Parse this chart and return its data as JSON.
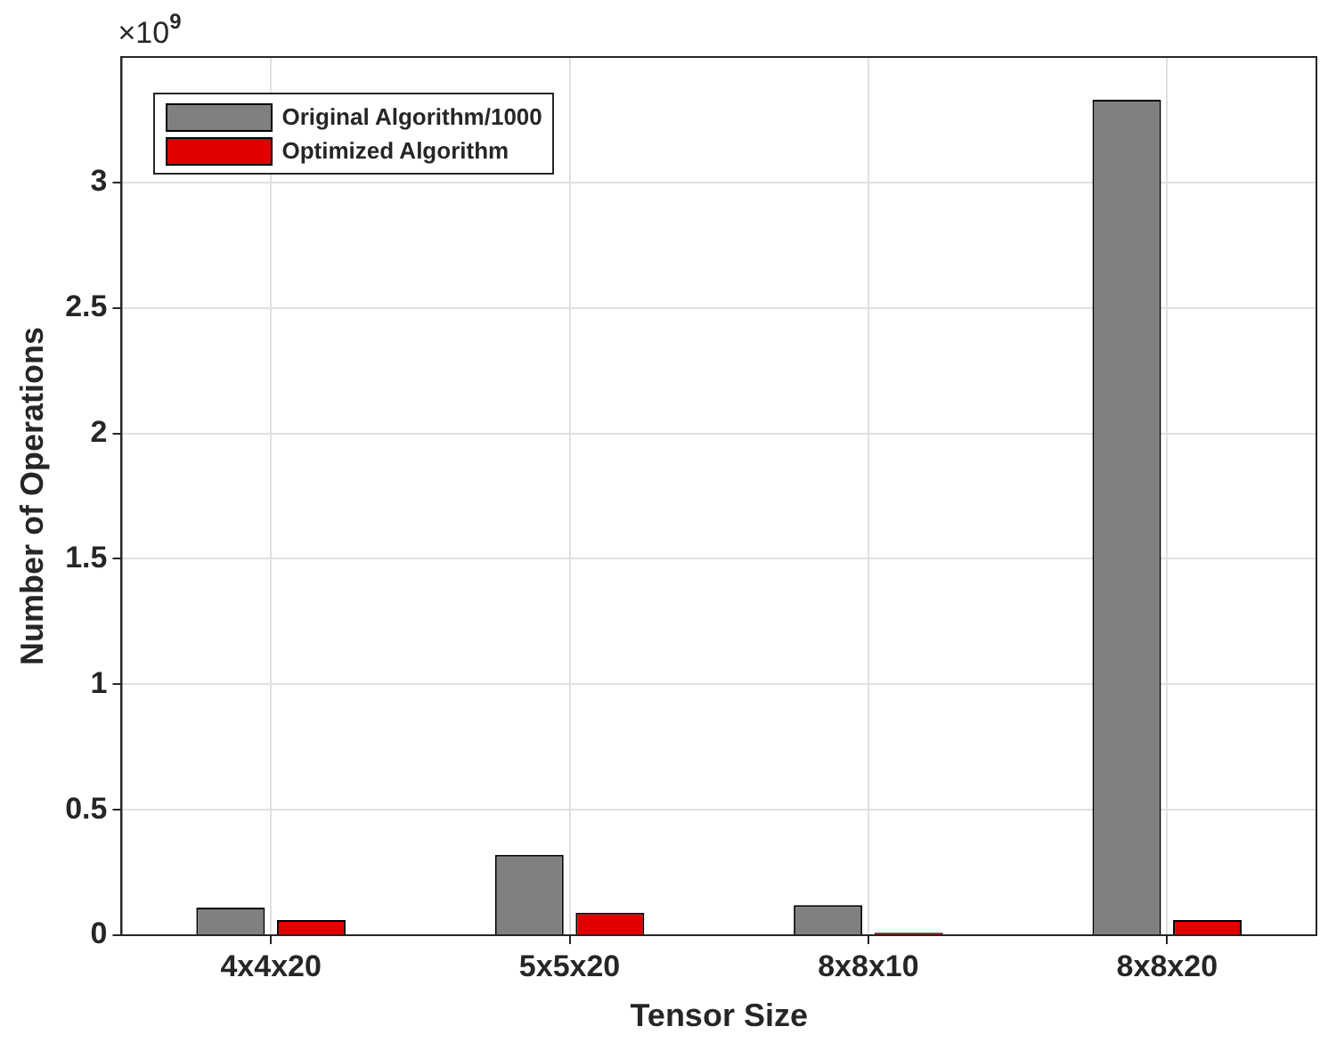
{
  "chart_data": {
    "type": "bar",
    "xlabel": "Tensor Size",
    "ylabel": "Number of Operations",
    "annotations": [
      "×10$^{9}$"
    ],
    "categories": [
      "4x4x20",
      "5x5x20",
      "8x8x10",
      "8x8x20"
    ],
    "series": [
      {
        "name": "Original Algorithm/1000",
        "color": "#808080",
        "values": [
          0.11,
          0.32,
          0.12,
          3.33
        ]
      },
      {
        "name": "Optimized Algorithm",
        "color": "#e00000",
        "values": [
          0.06,
          0.09,
          0.01,
          0.06
        ]
      }
    ],
    "ylim": [
      0,
      3.5
    ],
    "yticks": [
      0,
      0.5,
      1,
      1.5,
      2,
      2.5,
      3
    ],
    "grid": true,
    "legend": "top left"
  }
}
